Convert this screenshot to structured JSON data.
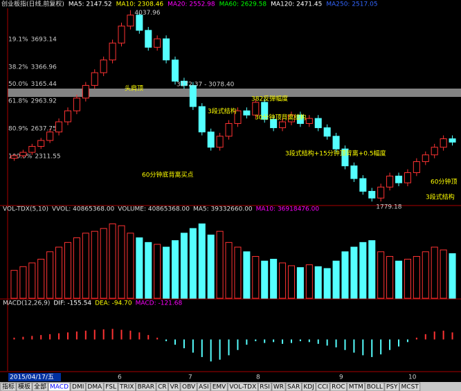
{
  "header": [
    "创业板指(日线,前复权)",
    "MA5: 2147.52",
    "MA10: 2308.46",
    "MA20: 2552.98",
    "MA60: 2629.58",
    "MA120: 2471.45",
    "MA250: 2517.05"
  ],
  "price_panel": {
    "ylim": [
      1740,
      4060
    ],
    "levels": [
      {
        "pct": "19.1%",
        "value": 3693.14
      },
      {
        "pct": "38.2%",
        "value": 3366.96
      },
      {
        "pct": "50.0%",
        "value": 3165.44
      },
      {
        "pct": "61.8%",
        "value": 2963.92
      },
      {
        "pct": "80.9%",
        "value": 2637.75
      },
      {
        "pct": "100.0%",
        "value": 2311.55
      }
    ],
    "candles": [
      [
        2290,
        2340,
        2260,
        2320
      ],
      [
        2320,
        2390,
        2290,
        2360
      ],
      [
        2360,
        2460,
        2330,
        2430
      ],
      [
        2430,
        2530,
        2400,
        2500
      ],
      [
        2500,
        2640,
        2470,
        2600
      ],
      [
        2600,
        2760,
        2560,
        2720
      ],
      [
        2720,
        2890,
        2680,
        2850
      ],
      [
        2850,
        3040,
        2810,
        3000
      ],
      [
        3000,
        3190,
        2960,
        3150
      ],
      [
        3150,
        3340,
        3110,
        3300
      ],
      [
        3300,
        3490,
        3260,
        3450
      ],
      [
        3450,
        3690,
        3410,
        3650
      ],
      [
        3650,
        3890,
        3610,
        3850
      ],
      [
        3850,
        4037.96,
        3810,
        3980
      ],
      [
        3980,
        4010,
        3760,
        3800
      ],
      [
        3800,
        3840,
        3560,
        3600
      ],
      [
        3600,
        3740,
        3560,
        3700
      ],
      [
        3700,
        3740,
        3410,
        3450
      ],
      [
        3450,
        3490,
        3160,
        3200
      ],
      [
        3200,
        3240,
        3110,
        3150
      ],
      [
        3150,
        3190,
        2860,
        2900
      ],
      [
        2900,
        2940,
        2560,
        2600
      ],
      [
        2600,
        2640,
        2380,
        2420
      ],
      [
        2420,
        2590,
        2380,
        2550
      ],
      [
        2550,
        2740,
        2510,
        2700
      ],
      [
        2700,
        2890,
        2660,
        2850
      ],
      [
        2850,
        2890,
        2760,
        2800
      ],
      [
        2800,
        2990,
        2760,
        2950
      ],
      [
        2950,
        2990,
        2710,
        2750
      ],
      [
        2750,
        2790,
        2610,
        2650
      ],
      [
        2650,
        2760,
        2610,
        2720
      ],
      [
        2720,
        2840,
        2680,
        2800
      ],
      [
        2800,
        2840,
        2660,
        2700
      ],
      [
        2700,
        2800,
        2660,
        2760
      ],
      [
        2760,
        2800,
        2610,
        2650
      ],
      [
        2650,
        2690,
        2510,
        2550
      ],
      [
        2550,
        2590,
        2360,
        2400
      ],
      [
        2400,
        2440,
        2160,
        2200
      ],
      [
        2200,
        2240,
        2010,
        2050
      ],
      [
        2050,
        2090,
        1860,
        1900
      ],
      [
        1900,
        1940,
        1779.18,
        1820
      ],
      [
        1820,
        1990,
        1780,
        1950
      ],
      [
        1950,
        2120,
        1910,
        2080
      ],
      [
        2080,
        2120,
        1960,
        2000
      ],
      [
        2000,
        2160,
        1960,
        2120
      ],
      [
        2120,
        2290,
        2080,
        2250
      ],
      [
        2250,
        2370,
        2210,
        2330
      ],
      [
        2330,
        2460,
        2290,
        2420
      ],
      [
        2420,
        2560,
        2380,
        2520
      ],
      [
        2520,
        2560,
        2440,
        2480
      ]
    ],
    "annotations": [
      "头肩顶",
      "3172.37 - 3078.40",
      "382反弹幅度",
      "3段式结构",
      "30分钟顶背离结构",
      "3段式结构+15分钟顶背离+0.5幅度",
      "60分钟底背离买点",
      "60分钟顶",
      "3段式结构"
    ]
  },
  "volume_panel": {
    "header": [
      "VOL-TDX(5,10)",
      "VVOL: 40865368.00",
      "VOLUME: 40865368.00",
      "MA5: 39332660.00",
      "MA10: 36918476.00"
    ],
    "ylim": [
      0,
      90000000
    ],
    "values": [
      30000000,
      34000000,
      38000000,
      42000000,
      50000000,
      55000000,
      60000000,
      65000000,
      70000000,
      72000000,
      75000000,
      80000000,
      78000000,
      70000000,
      65000000,
      60000000,
      58000000,
      55000000,
      62000000,
      70000000,
      75000000,
      80000000,
      68000000,
      72000000,
      60000000,
      55000000,
      50000000,
      45000000,
      40000000,
      42000000,
      38000000,
      35000000,
      33000000,
      36000000,
      34000000,
      32000000,
      40000000,
      50000000,
      55000000,
      60000000,
      62000000,
      50000000,
      45000000,
      40000000,
      42000000,
      45000000,
      50000000,
      55000000,
      52000000,
      48000000
    ]
  },
  "macd_panel": {
    "header": [
      "MACD(12,26,9)",
      "DIF: -155.54",
      "DEA: -94.70",
      "MACD: -121.68"
    ],
    "ylim": [
      -350,
      350
    ],
    "values": [
      20,
      30,
      40,
      50,
      60,
      70,
      80,
      90,
      100,
      110,
      115,
      120,
      110,
      100,
      80,
      50,
      20,
      -20,
      -60,
      -100,
      -150,
      -200,
      -250,
      -230,
      -180,
      -120,
      -60,
      -20,
      -40,
      -30,
      -50,
      -40,
      -20,
      -30,
      -50,
      -70,
      -90,
      -120,
      -150,
      -180,
      -200,
      -170,
      -120,
      -80,
      -30,
      20,
      60,
      90,
      100,
      80
    ]
  },
  "date_axis": {
    "start": "2015/04/17/五",
    "months": [
      "6",
      "7",
      "8",
      "9",
      "10"
    ]
  },
  "tabs": [
    "指标",
    "模板",
    "全部",
    "MACD",
    "DMI",
    "DMA",
    "FSL",
    "TRIX",
    "BRAR",
    "CR",
    "VR",
    "OBV",
    "ASI",
    "EMV",
    "VOL-TDX",
    "RSI",
    "WR",
    "SAR",
    "KDJ",
    "CCI",
    "ROC",
    "MTM",
    "BOLL",
    "PSY",
    "MCST"
  ]
}
